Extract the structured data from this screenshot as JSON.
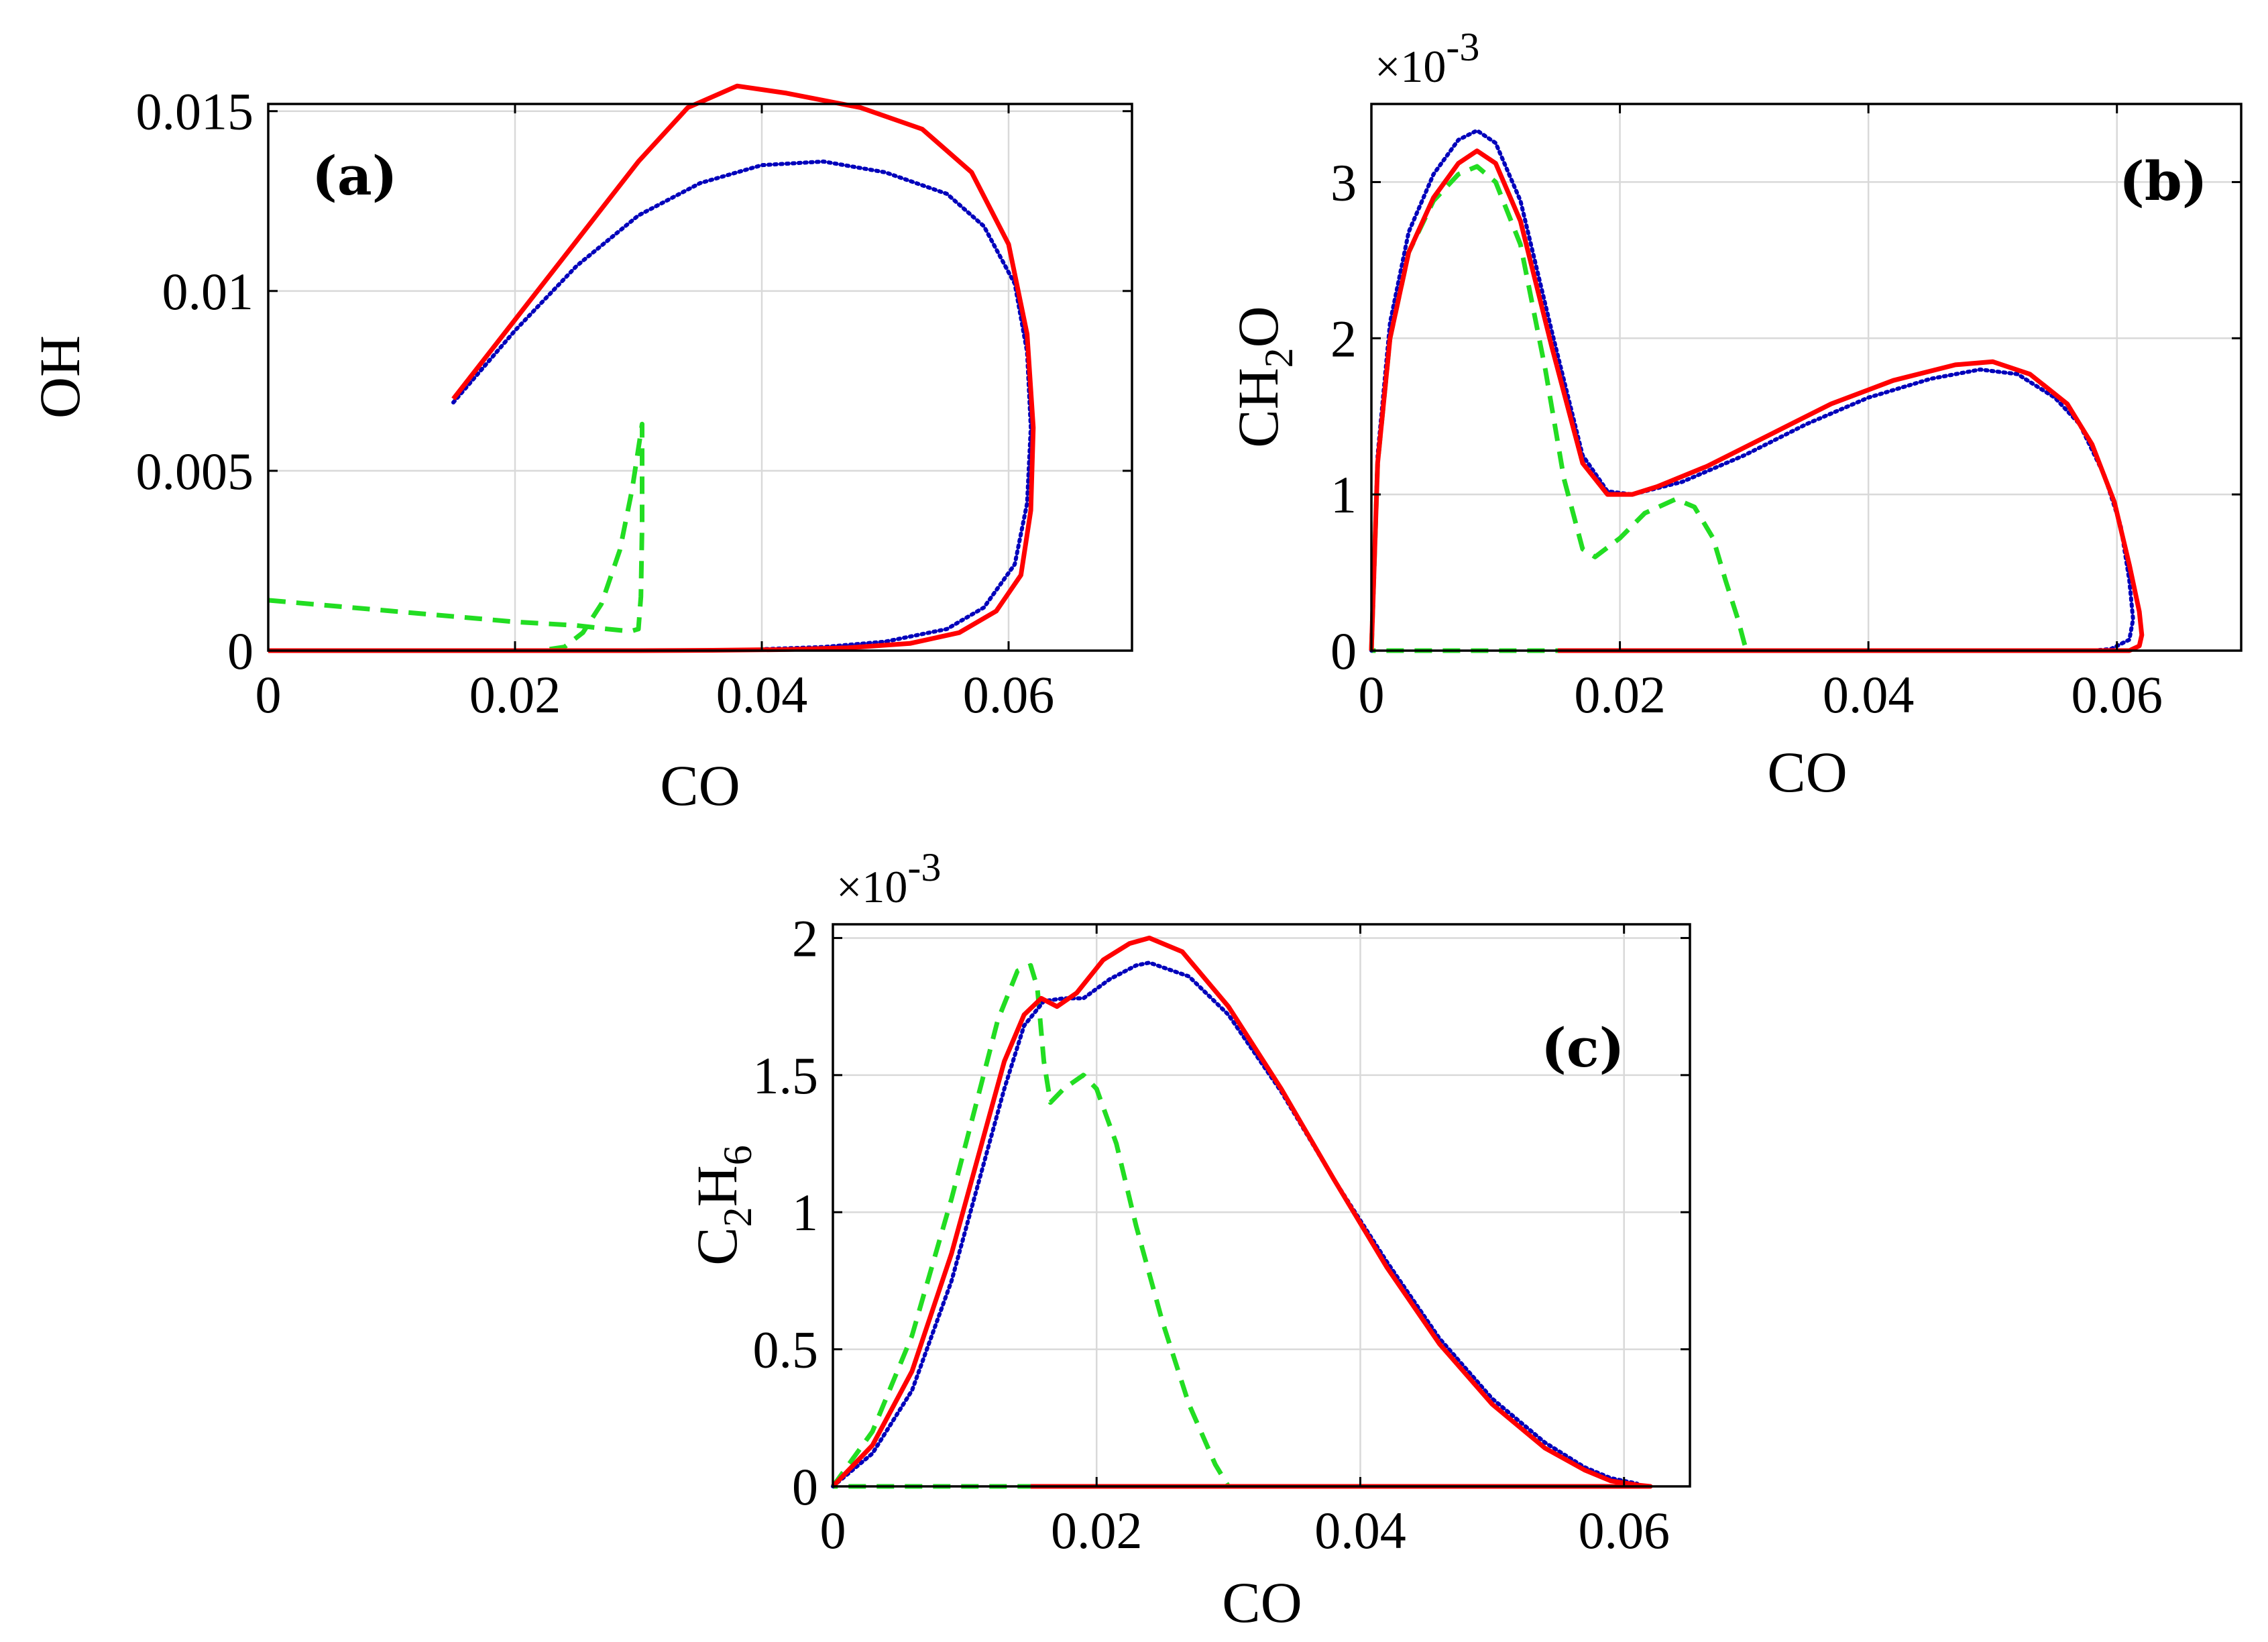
{
  "colors": {
    "series_red": "#ff0000",
    "series_blue": "#0000bb",
    "series_green": "#22dd22"
  },
  "chart_data": [
    {
      "id": "a",
      "type": "line",
      "panel_label": "(a)",
      "xlabel": "CO",
      "ylabel": "OH",
      "xlim": [
        0,
        0.07
      ],
      "ylim": [
        0,
        0.0152
      ],
      "xticks": [
        0,
        0.02,
        0.04,
        0.06
      ],
      "xtick_labels": [
        "0",
        "0.02",
        "0.04",
        "0.06"
      ],
      "yticks": [
        0,
        0.005,
        0.01,
        0.015
      ],
      "ytick_labels": [
        "0",
        "0.005",
        "0.01",
        "0.015"
      ],
      "multiplier": "",
      "grid": true,
      "series": [
        {
          "name": "red-solid",
          "style": "solid",
          "color": "#ff0000",
          "x": [
            0.015,
            0.02,
            0.025,
            0.03,
            0.034,
            0.038,
            0.042,
            0.048,
            0.053,
            0.057,
            0.06,
            0.0615,
            0.062,
            0.0618,
            0.061,
            0.059,
            0.056,
            0.052,
            0.047,
            0.042,
            0.036,
            0.03,
            0.02,
            0.01,
            0
          ],
          "y": [
            0.007,
            0.0092,
            0.0114,
            0.0136,
            0.0151,
            0.0157,
            0.0155,
            0.0151,
            0.0145,
            0.0133,
            0.0113,
            0.0088,
            0.0062,
            0.0039,
            0.0021,
            0.0011,
            0.0005,
            0.0002,
            8e-05,
            3e-05,
            1e-05,
            0,
            0,
            0,
            0
          ]
        },
        {
          "name": "blue-dotted",
          "style": "dotted",
          "color": "#0000bb",
          "x": [
            0.015,
            0.02,
            0.025,
            0.03,
            0.035,
            0.04,
            0.045,
            0.05,
            0.055,
            0.058,
            0.0605,
            0.0615,
            0.0618,
            0.0615,
            0.0605,
            0.058,
            0.055,
            0.05,
            0.045,
            0.04
          ],
          "y": [
            0.0069,
            0.0089,
            0.0107,
            0.0121,
            0.013,
            0.0135,
            0.0136,
            0.0133,
            0.0127,
            0.0118,
            0.0102,
            0.0083,
            0.0062,
            0.0041,
            0.0024,
            0.0012,
            0.0006,
            0.00025,
            0.0001,
            4e-05
          ]
        },
        {
          "name": "green-dashed",
          "style": "dashed",
          "color": "#22dd22",
          "x": [
            0,
            0.01,
            0.02,
            0.025,
            0.0275,
            0.029,
            0.0295,
            0.03,
            0.0302,
            0.0303,
            0.0303,
            0.0295,
            0.0285,
            0.027,
            0.0255,
            0.024,
            0.022
          ],
          "y": [
            0.0014,
            0.0011,
            0.0008,
            0.0007,
            0.0006,
            0.00055,
            0.00055,
            0.0006,
            0.0015,
            0.0035,
            0.0063,
            0.0045,
            0.0028,
            0.0013,
            0.0005,
            0.0001,
            0
          ]
        }
      ]
    },
    {
      "id": "b",
      "type": "line",
      "panel_label": "(b)",
      "xlabel": "CO",
      "ylabel_main": "CH",
      "ylabel_sub": "2",
      "ylabel_tail": "O",
      "xlim": [
        0,
        0.07
      ],
      "ylim": [
        0,
        3.5
      ],
      "xticks": [
        0,
        0.02,
        0.04,
        0.06
      ],
      "xtick_labels": [
        "0",
        "0.02",
        "0.04",
        "0.06"
      ],
      "yticks": [
        0,
        1,
        2,
        3
      ],
      "ytick_labels": [
        "0",
        "1",
        "2",
        "3"
      ],
      "multiplier": "×10",
      "multiplier_exp": "-3",
      "grid": true,
      "series": [
        {
          "name": "red-solid",
          "style": "solid",
          "color": "#ff0000",
          "x": [
            0,
            0.0005,
            0.0015,
            0.003,
            0.005,
            0.007,
            0.0085,
            0.01,
            0.012,
            0.0145,
            0.017,
            0.019,
            0.021,
            0.023,
            0.027,
            0.032,
            0.037,
            0.042,
            0.047,
            0.05,
            0.053,
            0.056,
            0.058,
            0.0598,
            0.061,
            0.0618,
            0.062,
            0.0618,
            0.061,
            0.059,
            0.055,
            0.04,
            0.02,
            0.015
          ],
          "y": [
            0,
            1.2,
            2.0,
            2.55,
            2.9,
            3.12,
            3.2,
            3.12,
            2.75,
            1.95,
            1.2,
            1.0,
            1.0,
            1.05,
            1.18,
            1.38,
            1.58,
            1.73,
            1.83,
            1.85,
            1.77,
            1.58,
            1.32,
            0.95,
            0.55,
            0.25,
            0.1,
            0.03,
            0,
            0,
            0,
            0,
            0,
            0
          ]
        },
        {
          "name": "blue-dotted",
          "style": "dotted",
          "color": "#0000bb",
          "x": [
            0,
            0.0005,
            0.0015,
            0.003,
            0.005,
            0.007,
            0.0085,
            0.01,
            0.012,
            0.0145,
            0.017,
            0.019,
            0.021,
            0.025,
            0.03,
            0.035,
            0.04,
            0.045,
            0.049,
            0.052,
            0.055,
            0.057,
            0.059,
            0.0603,
            0.061,
            0.0613,
            0.061,
            0.0595,
            0.058
          ],
          "y": [
            0,
            1.25,
            2.1,
            2.68,
            3.05,
            3.27,
            3.33,
            3.25,
            2.88,
            2.05,
            1.25,
            1.02,
            1.0,
            1.08,
            1.25,
            1.45,
            1.62,
            1.74,
            1.8,
            1.77,
            1.62,
            1.45,
            1.12,
            0.8,
            0.45,
            0.2,
            0.07,
            0.01,
            0
          ]
        },
        {
          "name": "green-dashed",
          "style": "dashed",
          "color": "#22dd22",
          "x": [
            0,
            0.0005,
            0.0015,
            0.003,
            0.005,
            0.007,
            0.0085,
            0.01,
            0.012,
            0.014,
            0.0155,
            0.017,
            0.018,
            0.02,
            0.022,
            0.0245,
            0.026,
            0.0275,
            0.0285,
            0.0295,
            0.03,
            0.0302,
            0.025,
            0.015,
            0.005,
            0
          ],
          "y": [
            0,
            1.2,
            2.0,
            2.55,
            2.88,
            3.05,
            3.1,
            3.0,
            2.6,
            1.8,
            1.1,
            0.65,
            0.6,
            0.72,
            0.88,
            0.97,
            0.92,
            0.72,
            0.45,
            0.2,
            0.05,
            0,
            0,
            0,
            0,
            0
          ]
        }
      ]
    },
    {
      "id": "c",
      "type": "line",
      "panel_label": "(c)",
      "xlabel": "CO",
      "ylabel_main": "C",
      "ylabel_sub": "2",
      "ylabel_mid": "H",
      "ylabel_sub2": "6",
      "xlim": [
        0,
        0.065
      ],
      "ylim": [
        0,
        2.05
      ],
      "xticks": [
        0,
        0.02,
        0.04,
        0.06
      ],
      "xtick_labels": [
        "0",
        "0.02",
        "0.04",
        "0.06"
      ],
      "yticks": [
        0,
        0.5,
        1,
        1.5,
        2
      ],
      "ytick_labels": [
        "0",
        "0.5",
        "1",
        "1.5",
        "2"
      ],
      "multiplier": "×10",
      "multiplier_exp": "-3",
      "grid": true,
      "series": [
        {
          "name": "red-solid",
          "style": "solid",
          "color": "#ff0000",
          "x": [
            0,
            0.003,
            0.006,
            0.009,
            0.011,
            0.013,
            0.0145,
            0.0158,
            0.017,
            0.0185,
            0.0205,
            0.0225,
            0.024,
            0.0265,
            0.03,
            0.034,
            0.038,
            0.042,
            0.046,
            0.05,
            0.054,
            0.057,
            0.059,
            0.061,
            0.062,
            0.05,
            0.03,
            0.015
          ],
          "y": [
            0,
            0.15,
            0.42,
            0.85,
            1.2,
            1.55,
            1.72,
            1.78,
            1.75,
            1.8,
            1.92,
            1.98,
            2.0,
            1.95,
            1.75,
            1.45,
            1.12,
            0.8,
            0.52,
            0.3,
            0.14,
            0.06,
            0.02,
            0.005,
            0,
            0,
            0,
            0
          ]
        },
        {
          "name": "blue-dotted",
          "style": "dotted",
          "color": "#0000bb",
          "x": [
            0,
            0.003,
            0.006,
            0.009,
            0.011,
            0.013,
            0.0145,
            0.016,
            0.0175,
            0.019,
            0.021,
            0.023,
            0.024,
            0.027,
            0.03,
            0.034,
            0.038,
            0.042,
            0.046,
            0.05,
            0.054,
            0.057,
            0.059,
            0.061
          ],
          "y": [
            0,
            0.12,
            0.35,
            0.75,
            1.1,
            1.45,
            1.68,
            1.77,
            1.78,
            1.78,
            1.85,
            1.9,
            1.91,
            1.86,
            1.72,
            1.44,
            1.12,
            0.82,
            0.54,
            0.32,
            0.16,
            0.07,
            0.03,
            0.01
          ]
        },
        {
          "name": "green-dashed",
          "style": "dashed",
          "color": "#22dd22",
          "x": [
            0,
            0.003,
            0.006,
            0.009,
            0.011,
            0.0125,
            0.014,
            0.015,
            0.0155,
            0.016,
            0.0165,
            0.0175,
            0.019,
            0.02,
            0.0215,
            0.023,
            0.025,
            0.027,
            0.029,
            0.03,
            0.025,
            0.015,
            0.005,
            0
          ],
          "y": [
            0,
            0.2,
            0.55,
            1.05,
            1.42,
            1.7,
            1.88,
            1.9,
            1.82,
            1.55,
            1.4,
            1.45,
            1.5,
            1.45,
            1.25,
            0.95,
            0.6,
            0.3,
            0.08,
            0,
            0,
            0,
            0,
            0
          ]
        }
      ]
    }
  ]
}
